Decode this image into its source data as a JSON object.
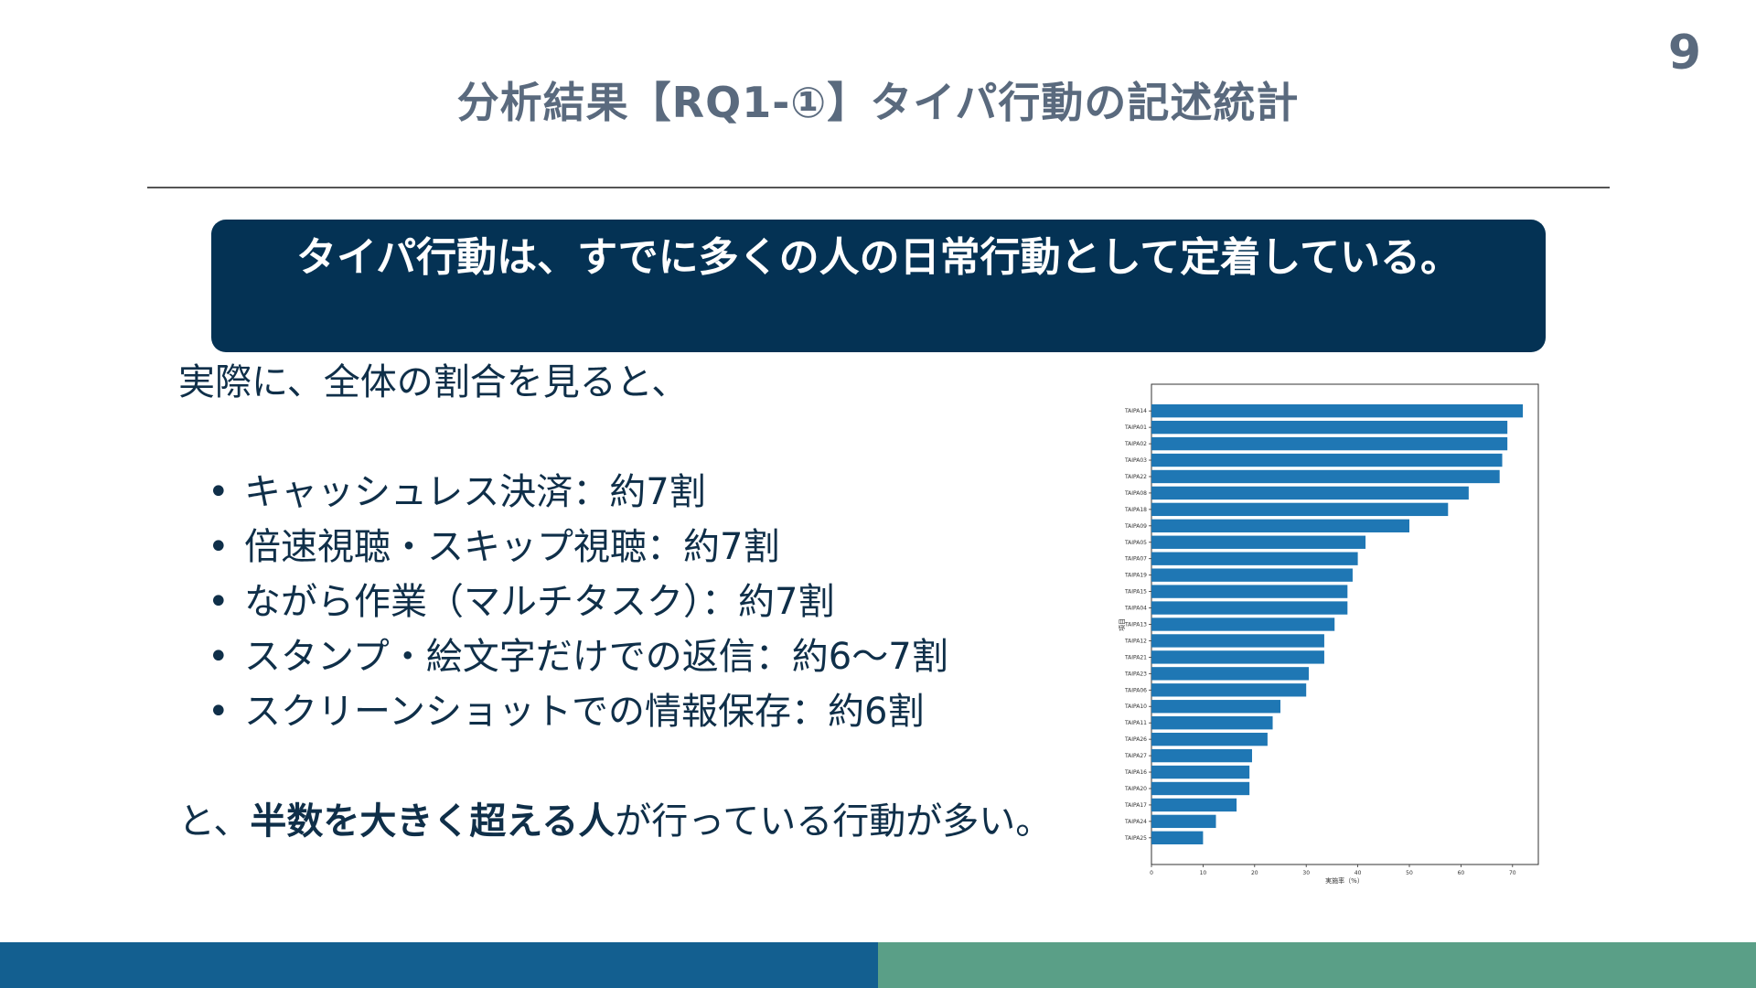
{
  "slide": {
    "page_number": "9",
    "title": "分析結果【RQ1-①】タイパ行動の記述統計",
    "banner_text": "タイパ行動は、すでに多くの人の日常行動として定着している。",
    "intro": "実際に、全体の割合を見ると、",
    "bullet_marker": "•",
    "bullets": [
      "キャッシュレス決済：約7割",
      "倍速視聴・スキップ視聴：約7割",
      "ながら作業（マルチタスク）：約7割",
      "スタンプ・絵文字だけでの返信：約6〜7割",
      "スクリーンショットでの情報保存：約6割"
    ],
    "conclusion_prefix": "と、",
    "conclusion_bold": "半数を大きく超える人",
    "conclusion_suffix": "が行っている行動が多い。"
  },
  "colors": {
    "title": "#5a6a7e",
    "banner_bg": "#043254",
    "body_text": "#0f2f49",
    "bar": "#1f77b4",
    "footer_left": "#135f90",
    "footer_right": "#5a9f87"
  },
  "chart_data": {
    "type": "bar",
    "orientation": "horizontal",
    "categories": [
      "TAIPA14",
      "TAIPA01",
      "TAIPA02",
      "TAIPA03",
      "TAIPA22",
      "TAIPA08",
      "TAIPA18",
      "TAIPA09",
      "TAIPA05",
      "TAIPA07",
      "TAIPA19",
      "TAIPA15",
      "TAIPA04",
      "TAIPA13",
      "TAIPA12",
      "TAIPA21",
      "TAIPA23",
      "TAIPA06",
      "TAIPA10",
      "TAIPA11",
      "TAIPA26",
      "TAIPA27",
      "TAIPA16",
      "TAIPA20",
      "TAIPA17",
      "TAIPA24",
      "TAIPA25"
    ],
    "values": [
      72,
      69,
      69,
      68,
      67.5,
      61.5,
      57.5,
      50,
      41.5,
      40,
      39,
      38,
      38,
      35.5,
      33.5,
      33.5,
      30.5,
      30,
      25,
      23.5,
      22.5,
      19.5,
      19,
      19,
      16.5,
      12.5,
      10
    ],
    "xlabel": "実施率（%）",
    "ylabel": "項目",
    "xlim": [
      0,
      75
    ],
    "xticks": [
      0,
      10,
      20,
      30,
      40,
      50,
      60,
      70
    ],
    "grid": false
  }
}
